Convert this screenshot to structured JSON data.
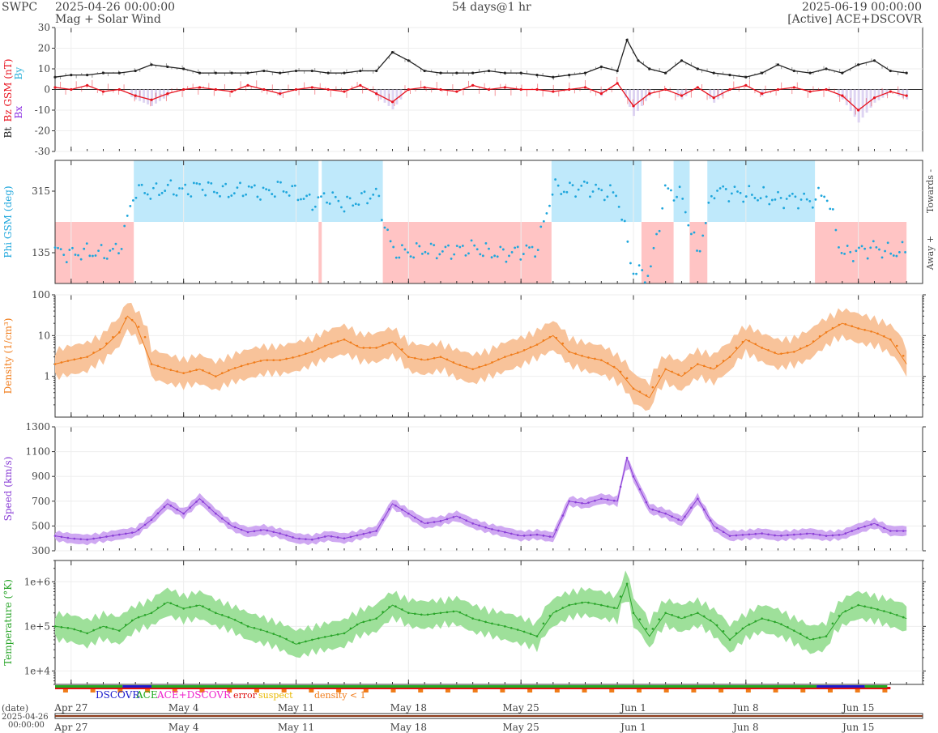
{
  "header": {
    "org": "SWPC",
    "start_time": "2025-04-26 00:00:00",
    "subtitle": "Mag + Solar Wind",
    "span": "54 days@1 hr",
    "end_time": "2025-06-19 00:00:00",
    "source": "[Active] ACE+DSCOVR"
  },
  "colors": {
    "bt": "#222222",
    "bz": "#e8121e",
    "bx": "#8a2be2",
    "by": "#2ab0d9",
    "phi": "#1ea6dc",
    "phi_towards_band": "#bfe9fb",
    "phi_away_band": "#ffc4c4",
    "density": "#f07c1a",
    "density_band": "#f8c39a",
    "speed": "#8a3fd6",
    "speed_band": "#cfa8f2",
    "temperature": "#2aa52a",
    "temperature_band": "#9ee09a",
    "dscovr": "#1a1acc",
    "ace": "#22aa22",
    "ace_dscovr": "#ee22cc",
    "error": "#dd1111",
    "suspect": "#e8b800",
    "density_lt1": "#f07c1a"
  },
  "axes": {
    "x_tick_labels": [
      "Apr 27",
      "May 4",
      "May 11",
      "May 18",
      "May 25",
      "Jun 1",
      "Jun 8",
      "Jun 15"
    ],
    "x_tick_day_offsets": [
      1,
      8,
      15,
      22,
      29,
      36,
      43,
      50
    ],
    "total_days": 54,
    "date_caption": "(date)",
    "date_start": "2025-04-26",
    "time_start": "00:00:00"
  },
  "chart_data": [
    {
      "panel": "mag",
      "type": "line",
      "ylabel_parts": [
        "Bt",
        "Bz GSM (nT)",
        "Bx",
        "By"
      ],
      "ylim": [
        -30,
        30
      ],
      "yticks": [
        -30,
        -20,
        -10,
        0,
        10,
        20,
        30
      ],
      "scale": "linear",
      "series": [
        {
          "name": "Bt",
          "key": "bt",
          "x": [
            0,
            1,
            2,
            3,
            4,
            5,
            6,
            7,
            8,
            9,
            10,
            11,
            12,
            13,
            14,
            15,
            16,
            17,
            18,
            19,
            20,
            21,
            22,
            23,
            24,
            25,
            26,
            27,
            28,
            29,
            30,
            31,
            32,
            33,
            34,
            35,
            35.6,
            36.3,
            37,
            38,
            39,
            40,
            41,
            42,
            43,
            44,
            45,
            46,
            47,
            48,
            49,
            50,
            51,
            52,
            53
          ],
          "y": [
            6,
            7,
            7,
            8,
            8,
            9,
            12,
            11,
            10,
            8,
            8,
            8,
            8,
            9,
            8,
            9,
            9,
            8,
            8,
            9,
            9,
            18,
            14,
            9,
            8,
            8,
            8,
            9,
            8,
            8,
            7,
            6,
            7,
            8,
            11,
            9,
            24,
            14,
            10,
            8,
            14,
            10,
            8,
            7,
            6,
            8,
            12,
            9,
            8,
            10,
            8,
            12,
            14,
            9,
            8
          ]
        },
        {
          "name": "Bz",
          "key": "bz",
          "x": [
            0,
            1,
            2,
            3,
            4,
            5,
            6,
            7,
            8,
            9,
            10,
            11,
            12,
            13,
            14,
            15,
            16,
            17,
            18,
            19,
            20,
            21,
            22,
            23,
            24,
            25,
            26,
            27,
            28,
            29,
            30,
            31,
            32,
            33,
            34,
            35,
            36,
            37,
            38,
            39,
            40,
            41,
            42,
            43,
            44,
            45,
            46,
            47,
            48,
            49,
            50,
            51,
            52,
            53
          ],
          "y": [
            1,
            0,
            2,
            -1,
            0,
            -3,
            -5,
            -2,
            0,
            1,
            0,
            -1,
            2,
            0,
            -2,
            0,
            1,
            0,
            -1,
            2,
            -2,
            -6,
            0,
            1,
            0,
            -1,
            2,
            0,
            1,
            0,
            0,
            -1,
            0,
            1,
            -2,
            3,
            -8,
            -2,
            0,
            -3,
            1,
            -4,
            0,
            2,
            -2,
            0,
            1,
            -1,
            0,
            -3,
            -10,
            -4,
            -1,
            -3
          ]
        }
      ],
      "bz_negative_shading": "lavender"
    },
    {
      "panel": "phi",
      "type": "scatter",
      "ylabel": "Phi GSM (deg)",
      "ylim": [
        45,
        405
      ],
      "yticks": [
        135,
        315
      ],
      "right_labels": [
        "Towards -",
        "Away +"
      ],
      "sector_bands": [
        {
          "start": 0,
          "end": 4.9,
          "sector": "away"
        },
        {
          "start": 4.9,
          "end": 16.4,
          "sector": "towards"
        },
        {
          "start": 16.4,
          "end": 16.6,
          "sector": "away"
        },
        {
          "start": 16.6,
          "end": 20.4,
          "sector": "towards"
        },
        {
          "start": 20.4,
          "end": 20.9,
          "sector": "away"
        },
        {
          "start": 20.9,
          "end": 30.9,
          "sector": "away"
        },
        {
          "start": 30.9,
          "end": 36.5,
          "sector": "towards"
        },
        {
          "start": 36.5,
          "end": 38.5,
          "sector": "away"
        },
        {
          "start": 38.5,
          "end": 39.5,
          "sector": "towards"
        },
        {
          "start": 39.5,
          "end": 40.6,
          "sector": "away"
        },
        {
          "start": 40.6,
          "end": 47.3,
          "sector": "towards"
        },
        {
          "start": 47.3,
          "end": 53,
          "sector": "away"
        }
      ],
      "series": [
        {
          "name": "Phi",
          "key": "phi",
          "x": [
            0,
            1,
            2,
            3,
            4,
            5,
            6,
            7,
            8,
            9,
            10,
            11,
            12,
            13,
            14,
            15,
            16,
            17,
            18,
            19,
            20,
            21,
            22,
            23,
            24,
            25,
            26,
            27,
            28,
            29,
            30,
            31,
            32,
            33,
            34,
            35,
            36,
            37,
            38,
            39,
            40,
            41,
            42,
            43,
            44,
            45,
            46,
            47,
            48,
            49,
            50,
            51,
            52,
            53
          ],
          "y": [
            140,
            130,
            138,
            132,
            145,
            320,
            310,
            325,
            315,
            330,
            318,
            312,
            322,
            308,
            326,
            310,
            280,
            300,
            275,
            290,
            310,
            140,
            135,
            145,
            138,
            142,
            150,
            136,
            130,
            140,
            145,
            325,
            318,
            330,
            312,
            305,
            80,
            70,
            320,
            300,
            130,
            320,
            312,
            305,
            300,
            290,
            295,
            285,
            310,
            130,
            140,
            150,
            135,
            140
          ]
        }
      ]
    },
    {
      "panel": "density",
      "type": "line",
      "ylabel": "Density (1/cm³)",
      "ylim": [
        0.1,
        100
      ],
      "scale": "log",
      "ytick_labels": [
        "1",
        "10",
        "100"
      ],
      "yticks": [
        1,
        10,
        100
      ],
      "series": [
        {
          "name": "Density",
          "key": "density",
          "x": [
            0,
            1,
            2,
            3,
            4,
            4.5,
            5,
            6,
            7,
            8,
            9,
            10,
            11,
            12,
            13,
            14,
            15,
            16,
            17,
            18,
            19,
            20,
            21,
            22,
            23,
            24,
            25,
            26,
            27,
            28,
            29,
            30,
            31,
            32,
            33,
            34,
            35,
            36,
            37,
            38,
            39,
            40,
            41,
            42,
            43,
            44,
            45,
            46,
            47,
            48,
            49,
            50,
            51,
            52,
            53
          ],
          "y": [
            2,
            2.5,
            3,
            5,
            12,
            30,
            20,
            2,
            1.5,
            1.2,
            1.5,
            1,
            1.5,
            2,
            2.5,
            2.5,
            3,
            4,
            6,
            8,
            5,
            5,
            7,
            3,
            2.5,
            3,
            2,
            1.5,
            2,
            3,
            4,
            6,
            10,
            4,
            3,
            2.5,
            1.5,
            0.5,
            0.3,
            1.5,
            1,
            2,
            1.5,
            3,
            8,
            5,
            3.5,
            4,
            6,
            12,
            20,
            15,
            12,
            8,
            2
          ]
        }
      ]
    },
    {
      "panel": "speed",
      "type": "line",
      "ylabel": "Speed (km/s)",
      "ylim": [
        300,
        1300
      ],
      "scale": "linear",
      "yticks": [
        300,
        500,
        700,
        900,
        1100,
        1300
      ],
      "series": [
        {
          "name": "Speed",
          "key": "speed",
          "x": [
            0,
            1,
            2,
            3,
            4,
            5,
            6,
            7,
            8,
            9,
            10,
            11,
            12,
            13,
            14,
            15,
            16,
            17,
            18,
            19,
            20,
            21,
            22,
            23,
            24,
            25,
            26,
            27,
            28,
            29,
            30,
            31,
            32,
            33,
            34,
            35,
            35.6,
            36,
            37,
            38,
            39,
            40,
            41,
            42,
            43,
            44,
            45,
            46,
            47,
            48,
            49,
            50,
            51,
            52,
            53
          ],
          "y": [
            420,
            400,
            390,
            410,
            430,
            450,
            550,
            680,
            600,
            720,
            600,
            500,
            450,
            470,
            440,
            400,
            390,
            420,
            400,
            430,
            460,
            680,
            600,
            520,
            540,
            580,
            520,
            480,
            450,
            420,
            430,
            410,
            700,
            680,
            720,
            700,
            1050,
            900,
            640,
            600,
            540,
            720,
            500,
            420,
            430,
            440,
            420,
            430,
            440,
            420,
            430,
            480,
            520,
            460,
            460
          ]
        }
      ]
    },
    {
      "panel": "temperature",
      "type": "line",
      "ylabel": "Temperature (°K)",
      "ylim": [
        5000,
        3000000
      ],
      "scale": "log",
      "ytick_labels": [
        "1e+4",
        "1e+5",
        "1e+6"
      ],
      "yticks": [
        10000,
        100000,
        1000000
      ],
      "series": [
        {
          "name": "Temperature",
          "key": "temperature",
          "x": [
            0,
            1,
            2,
            3,
            4,
            5,
            6,
            7,
            8,
            9,
            10,
            11,
            12,
            13,
            14,
            15,
            16,
            17,
            18,
            19,
            20,
            21,
            22,
            23,
            24,
            25,
            26,
            27,
            28,
            29,
            30,
            31,
            32,
            33,
            34,
            35,
            35.6,
            36,
            37,
            38,
            39,
            40,
            41,
            42,
            43,
            44,
            45,
            46,
            47,
            48,
            49,
            50,
            51,
            52,
            53
          ],
          "y": [
            100000,
            90000,
            70000,
            100000,
            80000,
            150000,
            200000,
            350000,
            250000,
            300000,
            200000,
            150000,
            100000,
            80000,
            60000,
            40000,
            50000,
            60000,
            70000,
            120000,
            150000,
            300000,
            200000,
            180000,
            200000,
            220000,
            150000,
            120000,
            100000,
            80000,
            60000,
            200000,
            300000,
            350000,
            300000,
            250000,
            900000,
            200000,
            60000,
            200000,
            150000,
            200000,
            120000,
            50000,
            100000,
            150000,
            120000,
            80000,
            50000,
            60000,
            200000,
            300000,
            250000,
            200000,
            150000
          ]
        }
      ]
    }
  ],
  "source_strip": {
    "labels": {
      "dscovr": "DSCOVR",
      "ace": "ACE",
      "ace_dscovr": "ACE+DSCOVR",
      "error": "error",
      "suspect": "suspect",
      "density_lt1": "density < 1"
    },
    "segments": [
      {
        "start": 0,
        "end": 4.2,
        "src": "ace"
      },
      {
        "start": 4.2,
        "end": 6.0,
        "src": "dscovr"
      },
      {
        "start": 6.0,
        "end": 47.4,
        "src": "ace"
      },
      {
        "start": 47.4,
        "end": 50.4,
        "src": "dscovr"
      },
      {
        "start": 50.4,
        "end": 51.8,
        "src": "ace"
      }
    ]
  }
}
